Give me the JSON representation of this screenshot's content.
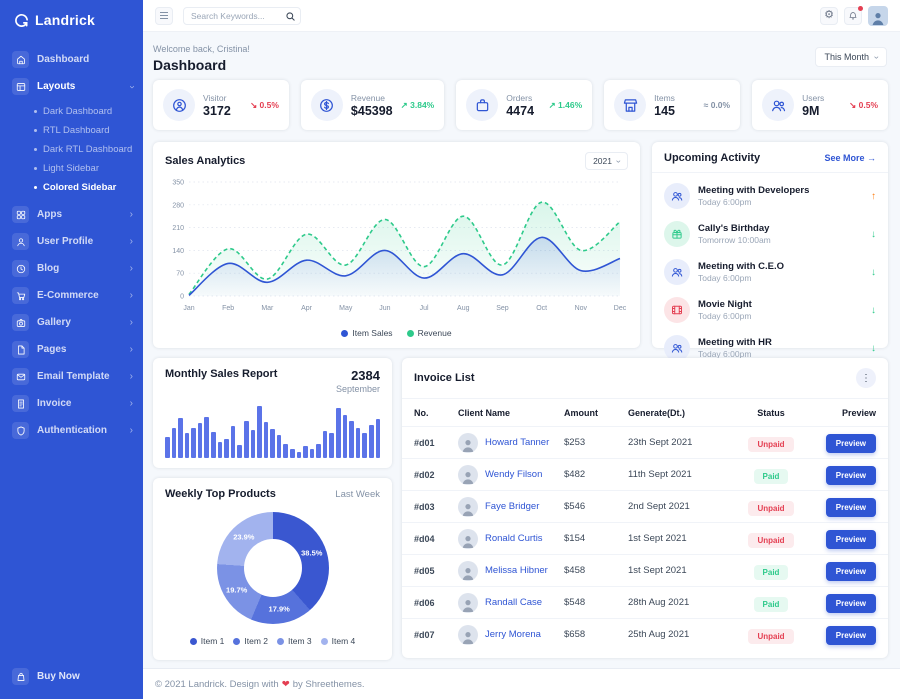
{
  "brand_color": "#2f55d4",
  "sidebar": {
    "brand": "Landrick",
    "items": [
      {
        "label": "Dashboard",
        "icon": "home",
        "type": "link"
      },
      {
        "label": "Layouts",
        "icon": "layout",
        "type": "group",
        "expanded": true,
        "children": [
          {
            "label": "Dark Dashboard"
          },
          {
            "label": "RTL Dashboard"
          },
          {
            "label": "Dark RTL Dashboard"
          },
          {
            "label": "Light Sidebar"
          },
          {
            "label": "Colored Sidebar",
            "active": true
          }
        ]
      },
      {
        "label": "Apps",
        "icon": "apps",
        "type": "parent"
      },
      {
        "label": "User Profile",
        "icon": "user",
        "type": "parent"
      },
      {
        "label": "Blog",
        "icon": "blog",
        "type": "parent"
      },
      {
        "label": "E-Commerce",
        "icon": "cart",
        "type": "parent"
      },
      {
        "label": "Gallery",
        "icon": "camera",
        "type": "parent"
      },
      {
        "label": "Pages",
        "icon": "page",
        "type": "parent"
      },
      {
        "label": "Email Template",
        "icon": "mail",
        "type": "parent"
      },
      {
        "label": "Invoice",
        "icon": "invoice",
        "type": "parent"
      },
      {
        "label": "Authentication",
        "icon": "shield",
        "type": "parent"
      }
    ],
    "buy_now": "Buy Now"
  },
  "topbar": {
    "search_placeholder": "Search Keywords..."
  },
  "page": {
    "welcome": "Welcome back, Cristina!",
    "title": "Dashboard",
    "period": "This Month"
  },
  "stats": [
    {
      "label": "Visitor",
      "value": "3172",
      "delta": "0.5%",
      "trend": "down",
      "icon": "person-badge"
    },
    {
      "label": "Revenue",
      "value": "$45398",
      "delta": "3.84%",
      "trend": "up",
      "icon": "dollar"
    },
    {
      "label": "Orders",
      "value": "4474",
      "delta": "1.46%",
      "trend": "up",
      "icon": "briefcase"
    },
    {
      "label": "Items",
      "value": "145",
      "delta": "0.0%",
      "trend": "flat",
      "icon": "shop"
    },
    {
      "label": "Users",
      "value": "9M",
      "delta": "0.5%",
      "trend": "down",
      "icon": "users"
    }
  ],
  "sales": {
    "title": "Sales Analytics",
    "year": "2021"
  },
  "activity": {
    "title": "Upcoming Activity",
    "see_more": "See More",
    "arrow": "→",
    "items": [
      {
        "title": "Meeting with Developers",
        "time": "Today 6:00pm",
        "icon": "people",
        "chip": "blue",
        "direction": "up"
      },
      {
        "title": "Cally's Birthday",
        "time": "Tomorrow 10:00am",
        "icon": "gift",
        "chip": "green",
        "direction": "down"
      },
      {
        "title": "Meeting with C.E.O",
        "time": "Today 6:00pm",
        "icon": "people",
        "chip": "blue",
        "direction": "down"
      },
      {
        "title": "Movie Night",
        "time": "Today 6:00pm",
        "icon": "film",
        "chip": "red",
        "direction": "down"
      },
      {
        "title": "Meeting with HR",
        "time": "Today 6:00pm",
        "icon": "people",
        "chip": "blue",
        "direction": "down"
      }
    ]
  },
  "monthly": {
    "title": "Monthly Sales Report",
    "value": "2384",
    "month": "September"
  },
  "weekly": {
    "title": "Weekly Top Products",
    "period": "Last Week"
  },
  "invoice": {
    "title": "Invoice List",
    "columns": [
      "No.",
      "Client Name",
      "Amount",
      "Generate(Dt.)",
      "Status",
      "Preview"
    ],
    "preview_label": "Preview",
    "rows": [
      {
        "no": "#d01",
        "name": "Howard Tanner",
        "amount": "$253",
        "date": "23th Sept 2021",
        "status": "Unpaid"
      },
      {
        "no": "#d02",
        "name": "Wendy Filson",
        "amount": "$482",
        "date": "11th Sept 2021",
        "status": "Paid"
      },
      {
        "no": "#d03",
        "name": "Faye Bridger",
        "amount": "$546",
        "date": "2nd Sept 2021",
        "status": "Unpaid"
      },
      {
        "no": "#d04",
        "name": "Ronald Curtis",
        "amount": "$154",
        "date": "1st Sept 2021",
        "status": "Unpaid"
      },
      {
        "no": "#d05",
        "name": "Melissa Hibner",
        "amount": "$458",
        "date": "1st Sept 2021",
        "status": "Paid"
      },
      {
        "no": "#d06",
        "name": "Randall Case",
        "amount": "$548",
        "date": "28th Aug 2021",
        "status": "Paid"
      },
      {
        "no": "#d07",
        "name": "Jerry Morena",
        "amount": "$658",
        "date": "25th Aug 2021",
        "status": "Unpaid"
      }
    ]
  },
  "footer": {
    "prefix": "© 2021 Landrick. Design with",
    "heart": "❤",
    "suffix": "by Shreethemes."
  },
  "chart_data": [
    {
      "id": "sales-analytics",
      "type": "area",
      "title": "Sales Analytics",
      "x": [
        "Jan",
        "Feb",
        "Mar",
        "Apr",
        "May",
        "Jun",
        "Jul",
        "Aug",
        "Sep",
        "Oct",
        "Nov",
        "Dec"
      ],
      "ylim": [
        0,
        350
      ],
      "yticks": [
        0,
        70,
        140,
        210,
        280,
        350
      ],
      "grid": true,
      "legend_position": "bottom",
      "series": [
        {
          "name": "Item Sales",
          "color": "#2f55d4",
          "style": "solid",
          "values": [
            2,
            100,
            42,
            110,
            62,
            140,
            55,
            130,
            65,
            180,
            78,
            115
          ]
        },
        {
          "name": "Revenue",
          "color": "#2eca8b",
          "style": "dashed",
          "values": [
            5,
            145,
            52,
            190,
            95,
            235,
            90,
            245,
            95,
            288,
            140,
            228
          ]
        }
      ]
    },
    {
      "id": "monthly-sales",
      "type": "bar",
      "title": "Monthly Sales Report",
      "color": "#5b73e8",
      "values": [
        38,
        56,
        74,
        46,
        56,
        64,
        76,
        48,
        30,
        36,
        60,
        24,
        68,
        52,
        96,
        66,
        54,
        42,
        26,
        16,
        12,
        22,
        16,
        26,
        50,
        46,
        92,
        80,
        68,
        56,
        46,
        62,
        72
      ]
    },
    {
      "id": "weekly-products",
      "type": "donut",
      "title": "Weekly Top Products",
      "labels": [
        "Item 1",
        "Item 2",
        "Item 3",
        "Item 4"
      ],
      "values": [
        38.5,
        17.9,
        19.7,
        23.9
      ],
      "colors": [
        "#3a57d0",
        "#5672dc",
        "#7b92e5",
        "#a2b3ee"
      ]
    }
  ]
}
